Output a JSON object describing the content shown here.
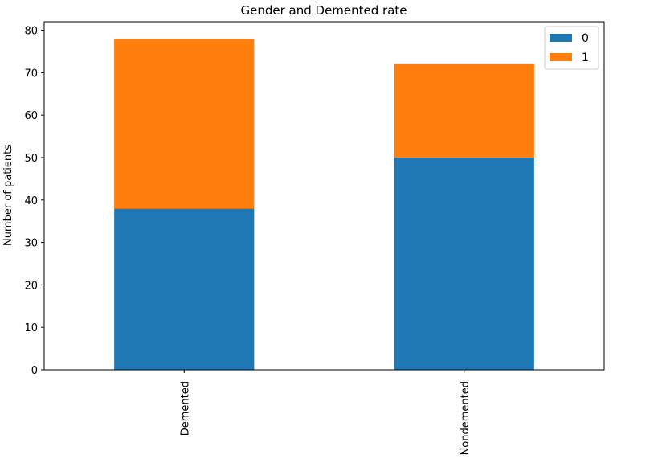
{
  "chart_data": {
    "type": "bar",
    "stacked": true,
    "title": "Gender and Demented rate",
    "xlabel": "",
    "ylabel": "Number of patients",
    "categories": [
      "Demented",
      "Nondemented"
    ],
    "series": [
      {
        "name": "0",
        "values": [
          38,
          50
        ],
        "color": "#1f77b4"
      },
      {
        "name": "1",
        "values": [
          40,
          22
        ],
        "color": "#ff7f0e"
      }
    ],
    "ylim": [
      0,
      82
    ],
    "yticks": [
      0,
      10,
      20,
      30,
      40,
      50,
      60,
      70,
      80
    ],
    "grid": false,
    "legend_position": "top-right"
  }
}
